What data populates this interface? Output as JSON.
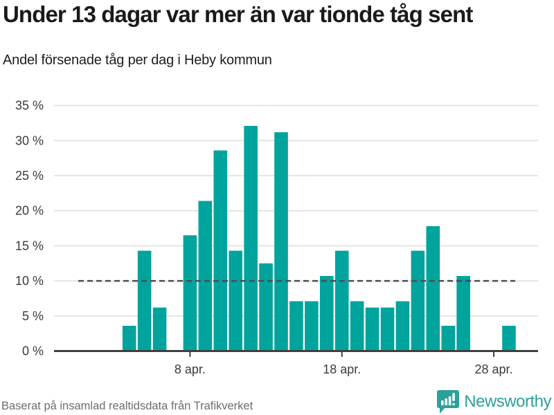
{
  "header": {
    "title": "Under 13 dagar var mer än var tionde tåg sent",
    "subtitle": "Andel försenade tåg per dag i Heby kommun"
  },
  "footer": {
    "source": "Baserat på insamlad realtidsdata från Trafikverket"
  },
  "logo": {
    "wordmark": "Newsworthy",
    "icon": "speech-bubble-bar-chart-icon",
    "color": "#2ba19a"
  },
  "colors": {
    "bar": "#00a49d",
    "grid": "#e4e4e4",
    "reference_line": "#4d4d4d",
    "axis": "#3f3f3f",
    "tick_text": "#3a3a3a"
  },
  "chart_data": {
    "type": "bar",
    "title": "Under 13 dagar var mer än var tionde tåg sent",
    "subtitle": "Andel försenade tåg per dag i Heby kommun",
    "unit": "%",
    "categories": [
      "1 apr.",
      "2 apr.",
      "3 apr.",
      "4 apr.",
      "5 apr.",
      "6 apr.",
      "7 apr.",
      "8 apr.",
      "9 apr.",
      "10 apr.",
      "11 apr.",
      "12 apr.",
      "13 apr.",
      "14 apr.",
      "15 apr.",
      "16 apr.",
      "17 apr.",
      "18 apr.",
      "19 apr.",
      "20 apr.",
      "21 apr.",
      "22 apr.",
      "23 apr.",
      "24 apr.",
      "25 apr.",
      "26 apr.",
      "27 apr.",
      "28 apr.",
      "29 apr.",
      "30 apr."
    ],
    "values": [
      null,
      null,
      null,
      3.6,
      14.3,
      6.2,
      null,
      16.5,
      21.4,
      28.6,
      14.3,
      32.1,
      12.5,
      31.2,
      7.1,
      7.1,
      10.7,
      14.3,
      7.1,
      6.2,
      6.2,
      7.1,
      14.3,
      17.8,
      3.6,
      10.7,
      null,
      null,
      3.6,
      null
    ],
    "reference_line": 10,
    "ylim": [
      0,
      35
    ],
    "yticks": [
      {
        "value": 0,
        "label": "0 %"
      },
      {
        "value": 5,
        "label": "5 %"
      },
      {
        "value": 10,
        "label": "10 %"
      },
      {
        "value": 15,
        "label": "15 %"
      },
      {
        "value": 20,
        "label": "20 %"
      },
      {
        "value": 25,
        "label": "25 %"
      },
      {
        "value": 30,
        "label": "30 %"
      },
      {
        "value": 35,
        "label": "35 %"
      }
    ],
    "xticks": [
      {
        "day": 8,
        "label": "8 apr."
      },
      {
        "day": 18,
        "label": "18 apr."
      },
      {
        "day": 28,
        "label": "28 apr."
      }
    ],
    "grid": true,
    "legend": "none"
  }
}
